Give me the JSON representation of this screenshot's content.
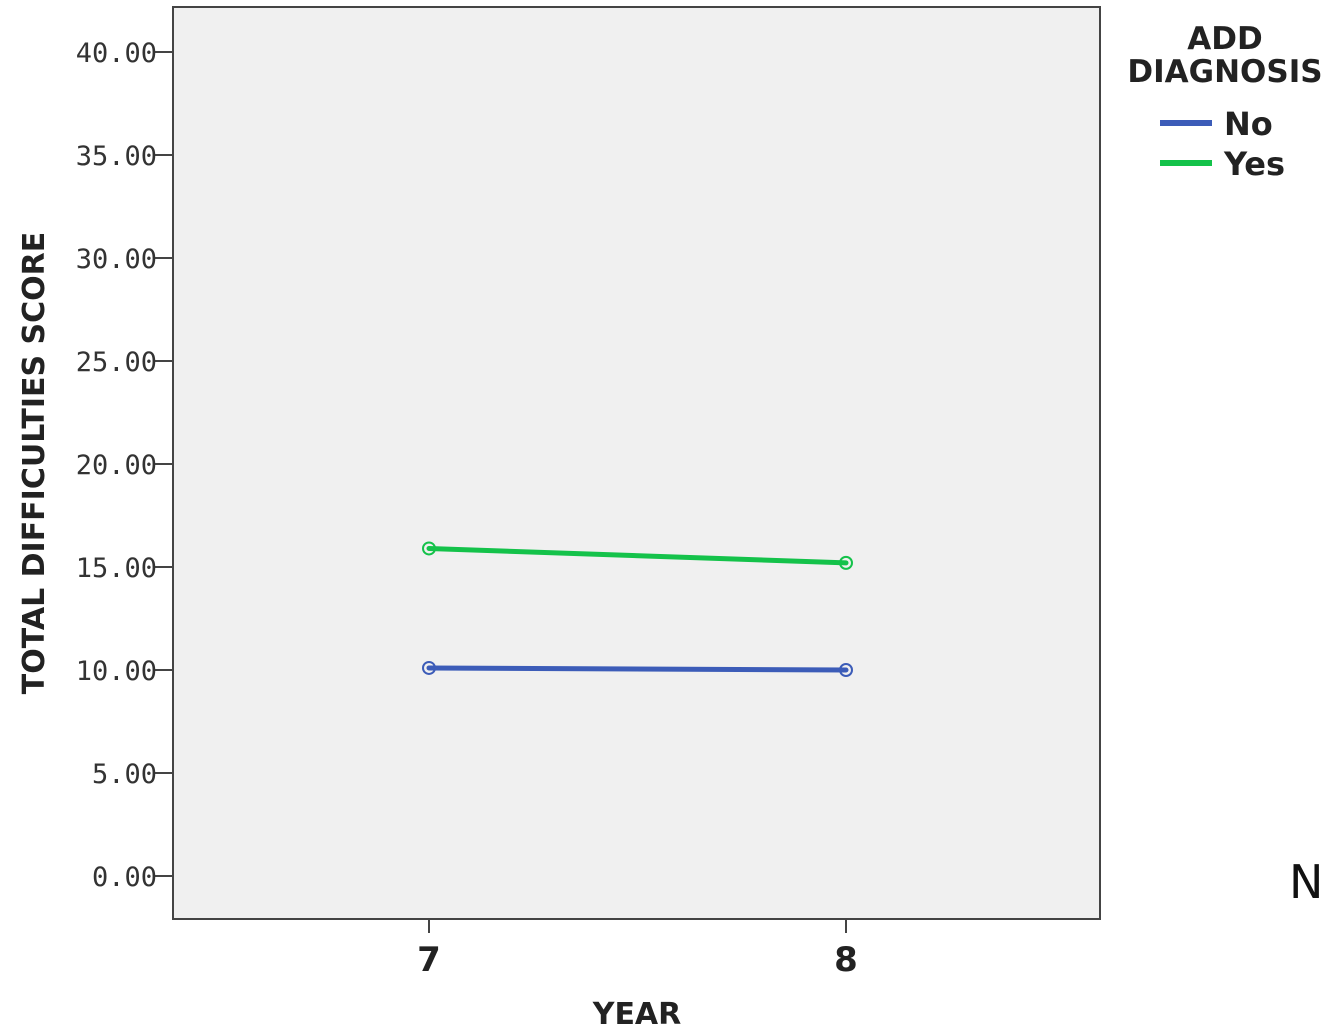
{
  "chart_data": {
    "type": "line",
    "title": "",
    "xlabel": "YEAR",
    "ylabel": "TOTAL DIFFICULTIES SCORE",
    "x": [
      "7",
      "8"
    ],
    "ylim": [
      0,
      40
    ],
    "yticks": [
      "0.00",
      "5.00",
      "10.00",
      "15.00",
      "20.00",
      "25.00",
      "30.00",
      "35.00",
      "40.00"
    ],
    "grid": false,
    "plot_background": "#f0f0f0",
    "legend": {
      "title_lines": [
        "ADD",
        "DIAGNOSIS"
      ],
      "position": "right"
    },
    "series": [
      {
        "name": "No",
        "color": "#3c5cb8",
        "values": [
          10.1,
          10.0
        ],
        "marker": "open-circle"
      },
      {
        "name": "Yes",
        "color": "#14c24a",
        "values": [
          15.9,
          15.2
        ],
        "marker": "open-circle"
      }
    ]
  },
  "corner_text": "N"
}
